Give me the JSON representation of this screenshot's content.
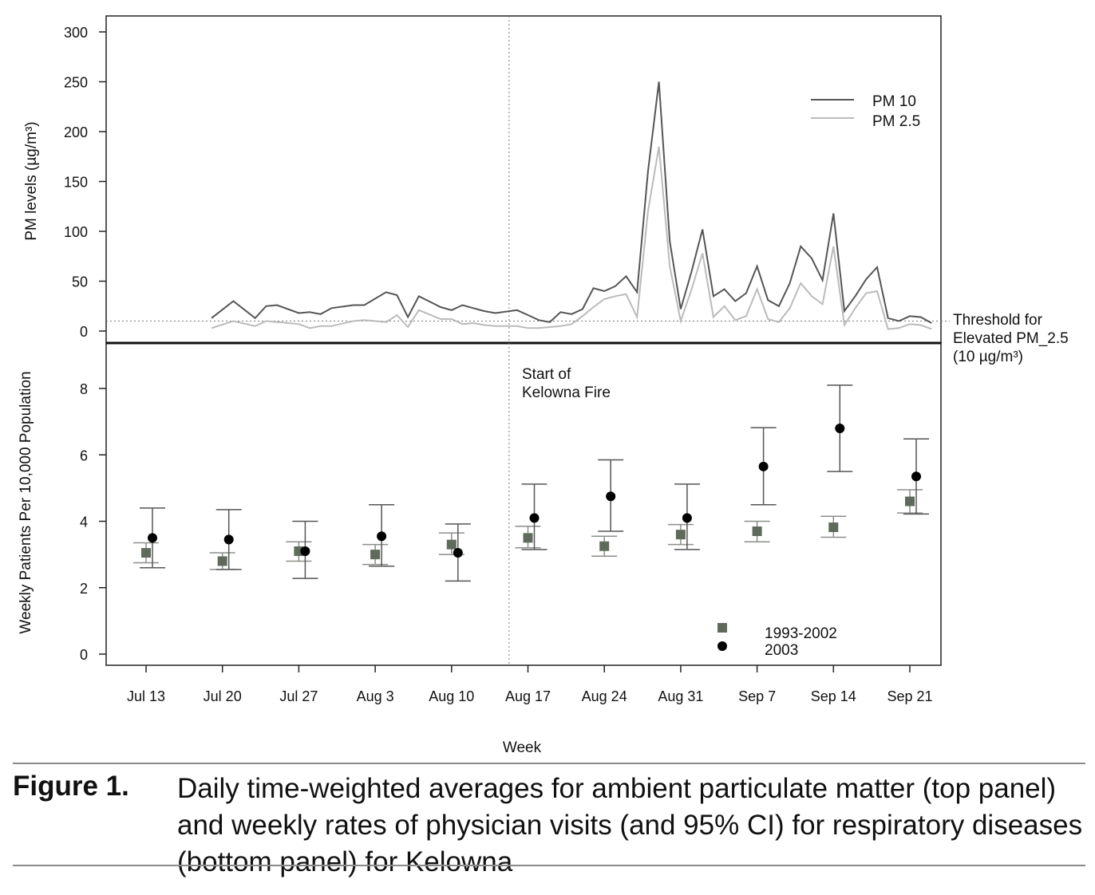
{
  "chart_data": [
    {
      "type": "line",
      "panel": "top",
      "ylabel": "PM levels (µg/m³)",
      "ylim": [
        0,
        300
      ],
      "yticks": [
        "0",
        "50",
        "100",
        "150",
        "200",
        "250",
        "300"
      ],
      "x_day_range": [
        -5,
        73
      ],
      "x_note": "day index 0 = Jul 13 (shared week axis with bottom panel)",
      "series": [
        {
          "name": "PM 10",
          "color": "#555555",
          "x": [
            6,
            8,
            10,
            11,
            12,
            14,
            15,
            16,
            17,
            19,
            20,
            22,
            23,
            24,
            25,
            27,
            28,
            29,
            30,
            31,
            32,
            34,
            35,
            36,
            37,
            38,
            39,
            40,
            41,
            42,
            43,
            44,
            45,
            46,
            47,
            48,
            49,
            50,
            51,
            52,
            53,
            54,
            55,
            56,
            57,
            58,
            59,
            60,
            61,
            62,
            63,
            64,
            65,
            66,
            67,
            68,
            69,
            70,
            71,
            72
          ],
          "values": [
            13,
            30,
            13,
            25,
            26,
            18,
            19,
            17,
            23,
            26,
            26,
            39,
            36,
            14,
            35,
            24,
            21,
            26,
            23,
            20,
            18,
            21,
            16,
            11,
            9,
            19,
            17,
            22,
            43,
            40,
            45,
            55,
            39,
            160,
            250,
            90,
            22,
            60,
            102,
            35,
            42,
            30,
            38,
            65,
            31,
            25,
            48,
            85,
            73,
            51,
            118,
            20,
            35,
            52,
            64,
            13,
            10,
            15,
            14,
            8
          ]
        },
        {
          "name": "PM 2.5",
          "color": "#bbbbbb",
          "x": [
            6,
            8,
            10,
            11,
            12,
            14,
            15,
            16,
            17,
            19,
            20,
            22,
            23,
            24,
            25,
            27,
            28,
            29,
            30,
            31,
            32,
            34,
            35,
            36,
            37,
            38,
            39,
            40,
            41,
            42,
            43,
            44,
            45,
            46,
            47,
            48,
            49,
            50,
            51,
            52,
            53,
            54,
            55,
            56,
            57,
            58,
            59,
            60,
            61,
            62,
            63,
            64,
            65,
            66,
            67,
            68,
            69,
            70,
            71,
            72
          ],
          "values": [
            3,
            10,
            5,
            10,
            9,
            7,
            3,
            5,
            5,
            10,
            11,
            9,
            16,
            4,
            21,
            12,
            12,
            7,
            8,
            6,
            5,
            5,
            3,
            3,
            4,
            5,
            7,
            15,
            24,
            32,
            35,
            37,
            14,
            120,
            185,
            65,
            10,
            42,
            78,
            14,
            25,
            11,
            15,
            42,
            12,
            9,
            23,
            48,
            35,
            27,
            85,
            6,
            23,
            38,
            40,
            2,
            3,
            7,
            6,
            2
          ]
        }
      ],
      "legend": [
        "PM 10",
        "PM 2.5"
      ],
      "legend_position": "top-right",
      "threshold": {
        "value": 10,
        "label_lines": [
          "Threshold for",
          "Elevated PM_2.5",
          "(10 µg/m³)"
        ]
      }
    },
    {
      "type": "scatter",
      "panel": "bottom",
      "title": "",
      "xlabel": "Week",
      "ylabel": "Weekly Patients Per 10,000 Population",
      "categories": [
        "Jul 13",
        "Jul 20",
        "Jul 27",
        "Aug 3",
        "Aug 10",
        "Aug 17",
        "Aug 24",
        "Aug 31",
        "Sep 7",
        "Sep 14",
        "Sep 21"
      ],
      "ylim": [
        -0.3,
        9.3
      ],
      "yticks": [
        "0",
        "2",
        "4",
        "6",
        "8"
      ],
      "series": [
        {
          "name": "1993-2002",
          "marker": "square",
          "color": "#5f6a5c",
          "values": [
            3.05,
            2.8,
            3.1,
            3.0,
            3.3,
            3.5,
            3.25,
            3.6,
            3.7,
            3.82,
            4.6
          ],
          "ci_low": [
            2.75,
            2.55,
            2.8,
            2.7,
            3.0,
            3.2,
            2.95,
            3.3,
            3.38,
            3.52,
            4.25
          ],
          "ci_high": [
            3.35,
            3.05,
            3.38,
            3.3,
            3.65,
            3.85,
            3.55,
            3.9,
            4.0,
            4.15,
            4.95
          ]
        },
        {
          "name": "2003",
          "marker": "circle",
          "color": "#000000",
          "values": [
            3.5,
            3.45,
            3.1,
            3.55,
            3.05,
            4.1,
            4.75,
            4.1,
            5.65,
            6.8,
            5.35
          ],
          "ci_low": [
            2.6,
            2.55,
            2.28,
            2.65,
            2.2,
            3.15,
            3.7,
            3.15,
            4.5,
            5.5,
            4.22
          ],
          "ci_high": [
            4.4,
            4.35,
            4.0,
            4.5,
            3.92,
            5.12,
            5.85,
            5.12,
            6.82,
            8.1,
            6.48
          ]
        }
      ],
      "legend": [
        "1993-2002",
        "2003"
      ],
      "legend_position": "bottom-right"
    }
  ],
  "annotations": {
    "fire_start": {
      "week": "Aug 17",
      "day_index": 34,
      "label_lines": [
        "Start of",
        "Kelowna Fire"
      ]
    }
  },
  "caption": {
    "label": "Figure 1.",
    "text": "Daily time-weighted averages for ambient particulate matter (top panel) and weekly rates of physician visits (and 95% CI) for respiratory diseases (bottom panel) for Kelowna"
  }
}
